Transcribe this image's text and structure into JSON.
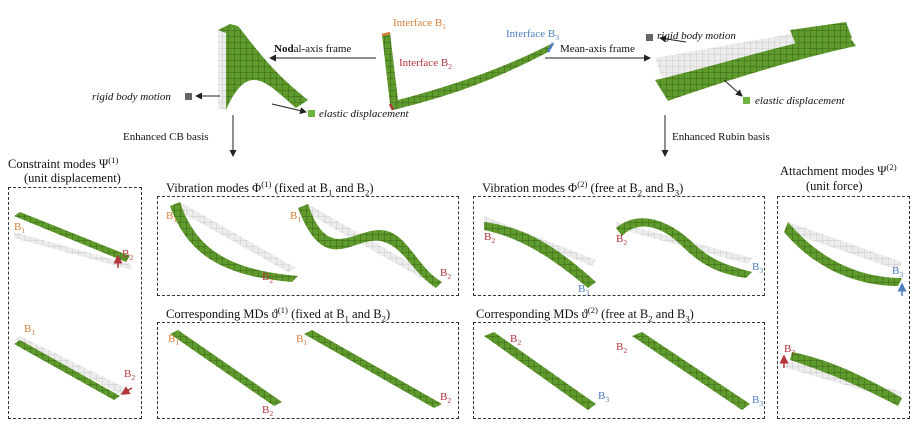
{
  "top": {
    "interface_b1_text": "Interface B",
    "interface_b1_sub": "1",
    "interface_b2_text": "Interface B",
    "interface_b2_sub": "2",
    "interface_b3_text": "Interface B",
    "interface_b3_sub": "3",
    "nodal_bold": "Nod",
    "nodal_rest": "al-axis frame",
    "mean_axis_frame": "Mean-axis frame",
    "rigid_body_motion": "rigid body motion",
    "elastic_displacement": "elastic displacement",
    "enhanced_cb": "Enhanced CB basis",
    "enhanced_rubin": "Enhanced Rubin basis"
  },
  "titles": {
    "constraint_text": "Constraint modes Ψ",
    "constraint_sup": "(1)",
    "constraint_sub": "(unit displacement)",
    "vib1_a": "Vibration modes Φ",
    "vib1_sup": "(1)",
    "vib1_b": " (fixed at B",
    "vib1_s1": "1",
    "vib1_c": " and B",
    "vib1_s2": "2",
    "vib1_d": ")",
    "md1_a": "Corresponding MDs ϑ",
    "md1_sup": "(1)",
    "md1_b": " (fixed at B",
    "md1_s1": "1",
    "md1_c": " and B",
    "md1_s2": "2",
    "md1_d": ")",
    "vib2_a": "Vibration modes Φ",
    "vib2_sup": "(2)",
    "vib2_b": " (free at B",
    "vib2_s1": "2",
    "vib2_c": " and B",
    "vib2_s2": "3",
    "vib2_d": ")",
    "md2_a": "Corresponding MDs ϑ",
    "md2_sup": "(2)",
    "md2_b": " (free at B",
    "md2_s1": "2",
    "md2_c": " and B",
    "md2_s2": "3",
    "md2_d": ")",
    "attach_text": "Attachment modes Ψ",
    "attach_sup": "(2)",
    "attach_sub": "(unit force)"
  },
  "bl": {
    "B": "B",
    "s1": "1",
    "s2": "2",
    "s3": "3"
  },
  "colors": {
    "interface_b1": "#d9803b",
    "interface_b2": "#b3353b",
    "interface_b3": "#4f7ec2",
    "mesh_green": "#5f9a2c",
    "rigid_marker": "#666666",
    "elastic_marker": "#6db33f"
  }
}
